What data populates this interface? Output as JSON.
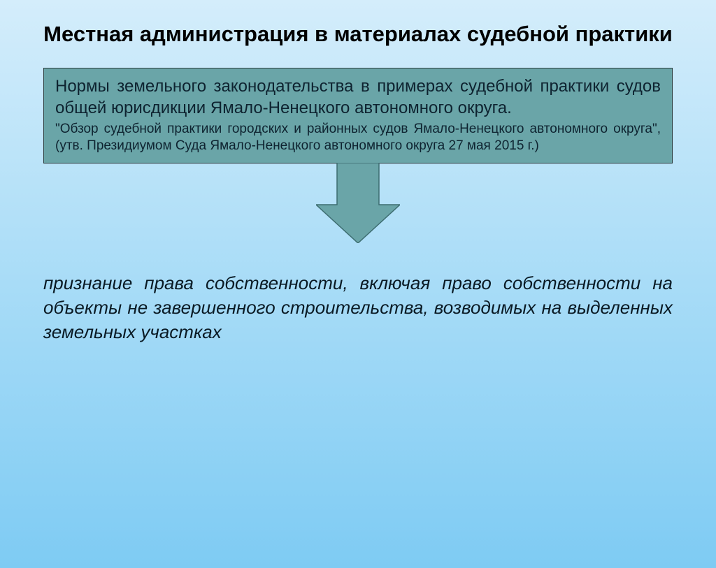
{
  "title": "Местная администрация в материалах судебной практики",
  "info_box": {
    "main_text": "Нормы земельного законодательства в примерах судебной практики судов общей юрисдикции Ямало-Ненецкого автономного округа.",
    "sub_text": "\"Обзор судебной практики городских и районных судов Ямало-Ненецкого автономного округа\", (утв. Президиумом Суда Ямало-Ненецкого автономного округа 27 мая 2015 г.)",
    "main_fontsize": 24,
    "sub_fontsize": 19,
    "bg_color": "#6aa5a8",
    "border_color": "#2a3a3a",
    "text_color": "#0e2330"
  },
  "arrow": {
    "fill_color": "#6aa5a8",
    "stroke_color": "#3d6d70",
    "stem_width": 60,
    "stem_height": 60,
    "head_width": 120,
    "head_height": 55
  },
  "conclusion": {
    "text": "признание права собственности, включая право собственности на объекты не завершенного строительства, возводимых на выделенных земельных участках",
    "fontsize": 26,
    "color": "#0a1a24",
    "italic": true
  },
  "title_style": {
    "fontsize": 31,
    "color": "#000000",
    "bold": true
  },
  "background": {
    "gradient_top": "#d4edfb",
    "gradient_mid": "#a8dcf7",
    "gradient_bottom": "#7ecbf3"
  }
}
